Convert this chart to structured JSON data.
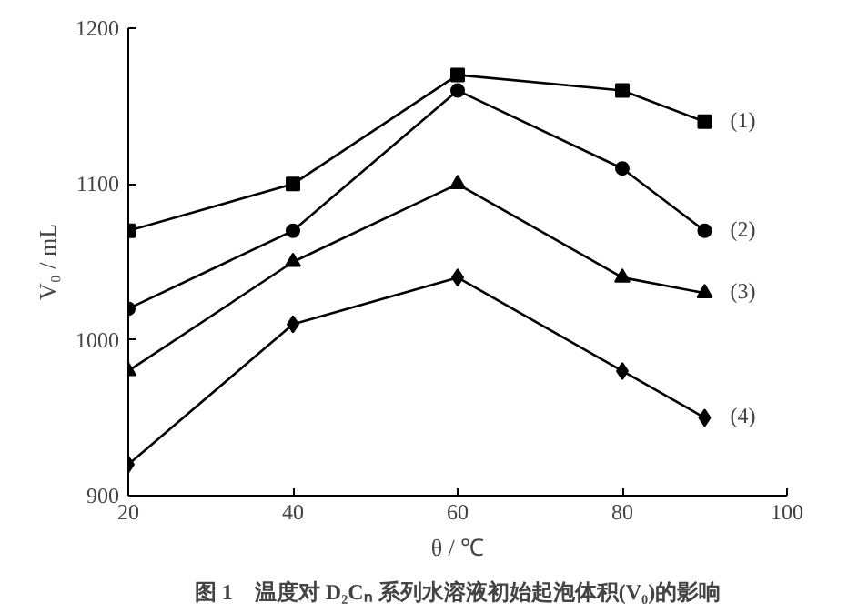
{
  "chart_data": {
    "type": "line",
    "xlabel": "θ / ℃",
    "ylabel": "V₀ / mL",
    "x": [
      20,
      40,
      60,
      80,
      90
    ],
    "series": [
      {
        "name": "(1)",
        "color": "#000000",
        "marker": "square",
        "values": [
          1070,
          1100,
          1170,
          1160,
          1140
        ]
      },
      {
        "name": "(2)",
        "color": "#000000",
        "marker": "circle",
        "values": [
          1020,
          1070,
          1160,
          1110,
          1070
        ]
      },
      {
        "name": "(3)",
        "color": "#000000",
        "marker": "triangle",
        "values": [
          980,
          1050,
          1100,
          1040,
          1030
        ]
      },
      {
        "name": "(4)",
        "color": "#000000",
        "marker": "diamond",
        "values": [
          920,
          1010,
          1040,
          980,
          950
        ]
      }
    ],
    "xlim": [
      20,
      100
    ],
    "xticks": [
      20,
      40,
      60,
      80,
      100
    ],
    "ylim": [
      900,
      1200
    ],
    "yticks": [
      900,
      1000,
      1100,
      1200
    ],
    "grid": false,
    "line_style": "solid",
    "annotations": [
      "图 1　温度对 D₂Cₙ 系列水溶液初始起泡体积(V₀)的影响"
    ]
  }
}
